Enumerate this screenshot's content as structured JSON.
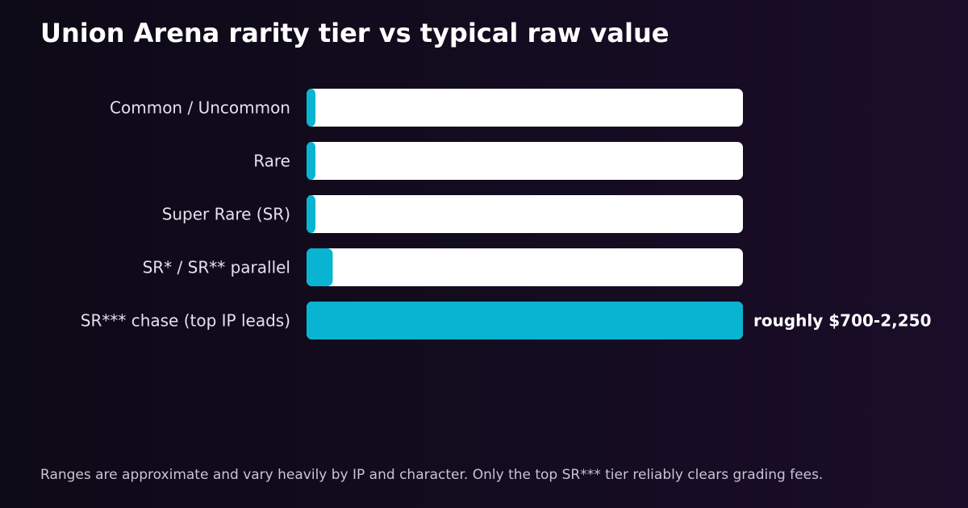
{
  "title": "Union Arena rarity tier vs typical raw value",
  "footnote": "Ranges are approximate and vary heavily by IP and character. Only the top SR*** tier reliably clears grading fees.",
  "colors": {
    "bar_fill": "#08b4d1",
    "bar_track": "#ffffff",
    "label_text": "#e4e0ee",
    "value_text": "#ffffff"
  },
  "chart_data": {
    "type": "bar",
    "orientation": "horizontal",
    "title": "Union Arena rarity tier vs typical raw value",
    "categories": [
      "Common / Uncommon",
      "Rare",
      "Super Rare (SR)",
      "SR* / SR** parallel",
      "SR*** chase (top IP leads)"
    ],
    "values": [
      2,
      2,
      2,
      6,
      100
    ],
    "value_unit": "percent of top tier (estimated)",
    "data_labels": [
      "",
      "",
      "",
      "",
      "roughly $700-2,250"
    ],
    "xlim": [
      0,
      100
    ],
    "grid": false,
    "legend": "none"
  }
}
